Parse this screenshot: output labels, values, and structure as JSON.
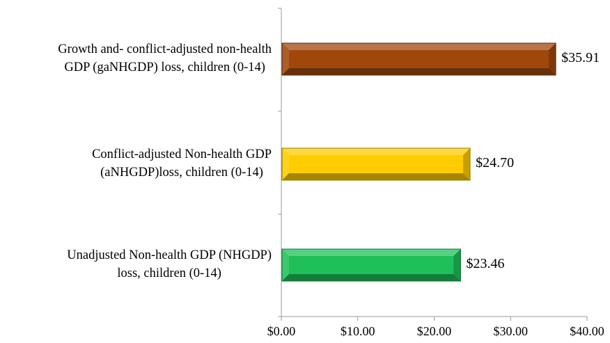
{
  "chart_data": {
    "type": "bar",
    "orientation": "horizontal",
    "categories": [
      "Growth and- conflict-adjusted non-health GDP (gaNHGDP) loss, children (0-14)",
      "Conflict-adjusted Non-health GDP (aNHGDP)loss, children (0-14)",
      "Unadjusted Non-health GDP (NHGDP) loss, children (0-14)"
    ],
    "category_lines": [
      [
        "Growth and- conflict-adjusted non-health",
        "GDP (gaNHGDP) loss, children (0-14)"
      ],
      [
        "Conflict-adjusted Non-health GDP",
        "(aNHGDP)loss, children (0-14)"
      ],
      [
        "Unadjusted Non-health GDP (NHGDP)",
        "loss, children (0-14)"
      ]
    ],
    "values": [
      35.91,
      24.7,
      23.46
    ],
    "value_labels": [
      "$35.91",
      "$24.70",
      "$23.46"
    ],
    "colors": [
      "#a0480c",
      "#ffcc00",
      "#1fc05a"
    ],
    "xlim": [
      0,
      40
    ],
    "xticks": [
      0,
      10,
      20,
      30,
      40
    ],
    "xtick_labels": [
      "$0.00",
      "$10.00",
      "$20.00",
      "$30.00",
      "$40.00"
    ],
    "title": "",
    "xlabel": "",
    "ylabel": "",
    "grid": false,
    "legend": "none"
  }
}
